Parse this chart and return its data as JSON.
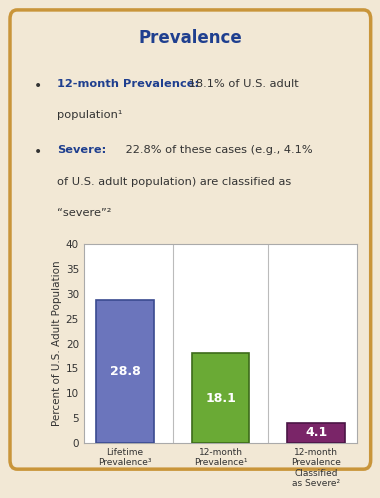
{
  "title": "Prevalence",
  "title_color": "#1f3f8f",
  "bullet1_bold": "12-month Prevalence:",
  "bullet1_rest_line1": " 18.1% of U.S. adult",
  "bullet1_rest_line2": "population¹",
  "bullet2_bold": "Severe:",
  "bullet2_rest_line1": " 22.8% of these cases (e.g., 4.1%",
  "bullet2_rest_line2": "of U.S. adult population) are classified as",
  "bullet2_rest_line3": "“severe”²",
  "bullet_color": "#1f3f8f",
  "text_color": "#333333",
  "categories": [
    "Lifetime\nPrevalence³",
    "12-month\nPrevalence¹",
    "12-month\nPrevalence\nClassified\nas Severe²"
  ],
  "values": [
    28.8,
    18.1,
    4.1
  ],
  "bar_colors": [
    "#6b75bc",
    "#6aaa35",
    "#7a2568"
  ],
  "bar_edge_colors": [
    "#3a4a90",
    "#3d6b1a",
    "#4a1545"
  ],
  "value_labels": [
    "28.8",
    "18.1",
    "4.1"
  ],
  "ylabel": "Percent of U.S. Adult Population",
  "ylim": [
    0,
    40
  ],
  "yticks": [
    0,
    5,
    10,
    15,
    20,
    25,
    30,
    35,
    40
  ],
  "background_color": "#f2e8d5",
  "plot_bg_color": "#ffffff",
  "border_color": "#c9953a",
  "border_linewidth": 2.5
}
